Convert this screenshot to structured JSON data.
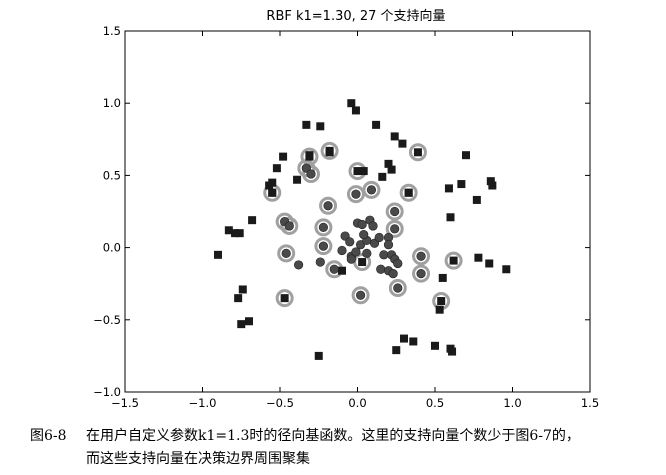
{
  "chart_data": {
    "type": "scatter",
    "title": "RBF k1=1.30, 27 个支持向量",
    "xlabel": "",
    "ylabel": "",
    "xlim": [
      -1.5,
      1.5
    ],
    "ylim": [
      -1.0,
      1.5
    ],
    "xticks": [
      "−1.5",
      "−1.0",
      "−0.5",
      "0.0",
      "0.5",
      "1.0",
      "1.5"
    ],
    "yticks": [
      "−1.0",
      "−0.5",
      "0.0",
      "0.5",
      "1.0",
      "1.5"
    ],
    "grid": false,
    "legend": "none",
    "colors": {
      "square": "#1a1a1a",
      "circle": "#4a4a4a",
      "support_ring": "#a0a0a0"
    },
    "series": [
      {
        "marker": "square",
        "points": [
          [
            -0.04,
            1.0
          ],
          [
            -0.01,
            0.95
          ],
          [
            0.12,
            0.85
          ],
          [
            -0.33,
            0.85
          ],
          [
            -0.24,
            0.84
          ],
          [
            0.24,
            0.77
          ],
          [
            0.29,
            0.72
          ],
          [
            0.7,
            0.64
          ],
          [
            -0.18,
            0.66
          ],
          [
            -0.31,
            0.64
          ],
          [
            -0.48,
            0.63
          ],
          [
            -0.52,
            0.55
          ],
          [
            0.04,
            0.53
          ],
          [
            0.2,
            0.58
          ],
          [
            0.22,
            0.54
          ],
          [
            0.16,
            0.49
          ],
          [
            -0.39,
            0.47
          ],
          [
            -0.55,
            0.45
          ],
          [
            -0.57,
            0.43
          ],
          [
            0.59,
            0.41
          ],
          [
            0.67,
            0.44
          ],
          [
            0.86,
            0.46
          ],
          [
            0.87,
            0.43
          ],
          [
            0.33,
            0.38
          ],
          [
            -0.55,
            0.38
          ],
          [
            0.77,
            0.33
          ],
          [
            0.6,
            0.21
          ],
          [
            -0.68,
            0.19
          ],
          [
            -0.83,
            0.12
          ],
          [
            -0.79,
            0.1
          ],
          [
            -0.76,
            0.1
          ],
          [
            -0.9,
            -0.05
          ],
          [
            0.78,
            -0.07
          ],
          [
            0.85,
            -0.11
          ],
          [
            0.96,
            -0.15
          ],
          [
            0.55,
            -0.21
          ],
          [
            -0.74,
            -0.29
          ],
          [
            -0.77,
            -0.35
          ],
          [
            0.53,
            -0.43
          ],
          [
            -0.7,
            -0.51
          ],
          [
            -0.75,
            -0.53
          ],
          [
            0.3,
            -0.63
          ],
          [
            0.36,
            -0.65
          ],
          [
            0.25,
            -0.71
          ],
          [
            0.5,
            -0.68
          ],
          [
            0.6,
            -0.7
          ],
          [
            0.61,
            -0.72
          ],
          [
            -0.25,
            -0.75
          ],
          [
            -0.1,
            -0.16
          ],
          [
            0.03,
            -0.1
          ],
          [
            0.39,
            0.66
          ],
          [
            -0.18,
            0.67
          ],
          [
            -0.31,
            0.63
          ],
          [
            0.0,
            0.53
          ],
          [
            -0.55,
            0.38
          ],
          [
            0.33,
            0.38
          ],
          [
            0.62,
            -0.09
          ],
          [
            0.54,
            -0.37
          ],
          [
            -0.47,
            -0.35
          ]
        ]
      },
      {
        "marker": "circle",
        "points": [
          [
            -0.33,
            0.55
          ],
          [
            -0.3,
            0.51
          ],
          [
            0.09,
            0.4
          ],
          [
            -0.01,
            0.37
          ],
          [
            -0.19,
            0.29
          ],
          [
            0.24,
            0.25
          ],
          [
            -0.47,
            0.18
          ],
          [
            -0.44,
            0.15
          ],
          [
            -0.22,
            0.14
          ],
          [
            0.24,
            0.13
          ],
          [
            -0.22,
            0.01
          ],
          [
            -0.46,
            -0.04
          ],
          [
            0.41,
            -0.06
          ],
          [
            0.41,
            -0.18
          ],
          [
            -0.15,
            -0.15
          ],
          [
            0.02,
            -0.33
          ],
          [
            0.26,
            -0.28
          ],
          [
            0.0,
            0.17
          ],
          [
            0.03,
            0.16
          ],
          [
            0.08,
            0.19
          ],
          [
            0.1,
            0.15
          ],
          [
            -0.08,
            0.08
          ],
          [
            -0.05,
            0.04
          ],
          [
            0.02,
            0.02
          ],
          [
            0.06,
            0.05
          ],
          [
            0.11,
            0.03
          ],
          [
            0.14,
            0.07
          ],
          [
            0.2,
            0.07
          ],
          [
            0.2,
            0.02
          ],
          [
            -0.1,
            -0.02
          ],
          [
            -0.04,
            -0.06
          ],
          [
            0.06,
            -0.04
          ],
          [
            0.17,
            -0.05
          ],
          [
            0.22,
            -0.05
          ],
          [
            0.24,
            -0.08
          ],
          [
            0.26,
            -0.11
          ],
          [
            0.15,
            -0.15
          ],
          [
            0.2,
            -0.16
          ],
          [
            0.23,
            -0.18
          ],
          [
            -0.04,
            -0.08
          ],
          [
            -0.38,
            -0.12
          ],
          [
            -0.24,
            -0.1
          ],
          [
            -0.01,
            -0.03
          ],
          [
            0.04,
            0.09
          ]
        ]
      }
    ],
    "support_vectors": [
      [
        -0.18,
        0.67
      ],
      [
        0.39,
        0.66
      ],
      [
        -0.31,
        0.63
      ],
      [
        -0.33,
        0.55
      ],
      [
        -0.3,
        0.51
      ],
      [
        0.0,
        0.53
      ],
      [
        0.33,
        0.38
      ],
      [
        -0.55,
        0.38
      ],
      [
        0.09,
        0.4
      ],
      [
        -0.01,
        0.37
      ],
      [
        -0.19,
        0.29
      ],
      [
        0.24,
        0.25
      ],
      [
        -0.47,
        0.18
      ],
      [
        -0.44,
        0.15
      ],
      [
        -0.22,
        0.14
      ],
      [
        0.24,
        0.13
      ],
      [
        -0.22,
        0.01
      ],
      [
        -0.46,
        -0.04
      ],
      [
        0.41,
        -0.06
      ],
      [
        0.62,
        -0.09
      ],
      [
        -0.15,
        -0.15
      ],
      [
        0.41,
        -0.18
      ],
      [
        0.26,
        -0.28
      ],
      [
        0.02,
        -0.33
      ],
      [
        -0.47,
        -0.35
      ],
      [
        0.54,
        -0.37
      ],
      [
        0.03,
        -0.1
      ]
    ]
  },
  "caption": {
    "label": "图6-8",
    "line1": "在用户自定义参数k1=1.3时的径向基函数。这里的支持向量个数少于图6-7的，",
    "line2": "而这些支持向量在决策边界周围聚集"
  }
}
